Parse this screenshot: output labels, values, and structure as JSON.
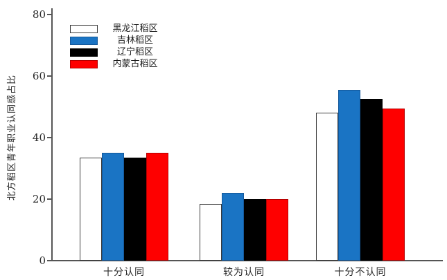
{
  "chart_data": {
    "type": "bar",
    "title": "",
    "xlabel": "",
    "ylabel": "北方稻区青年职业认同感占比",
    "categories": [
      "十分认同",
      "较为认同",
      "十分不认同"
    ],
    "series": [
      {
        "name": "黑龙江稻区",
        "color": "#ffffff",
        "edge_color": "#3a3a3a",
        "values": [
          33.5,
          18.5,
          48.0
        ]
      },
      {
        "name": "吉林稻区",
        "color": "#1a74c4",
        "edge_color": "#14589a",
        "values": [
          35.0,
          22.0,
          55.5
        ]
      },
      {
        "name": "辽宁稻区",
        "color": "#000000",
        "edge_color": "#000000",
        "values": [
          33.5,
          20.0,
          52.5
        ]
      },
      {
        "name": "内蒙古稻区",
        "color": "#fe0000",
        "edge_color": "#b40000",
        "values": [
          35.0,
          20.0,
          49.5
        ]
      }
    ],
    "ylim": [
      0,
      80
    ],
    "yticks": [
      0,
      20,
      40,
      60,
      80
    ],
    "legend_position": "top-left",
    "grid": false,
    "axis_color": "#555555"
  }
}
